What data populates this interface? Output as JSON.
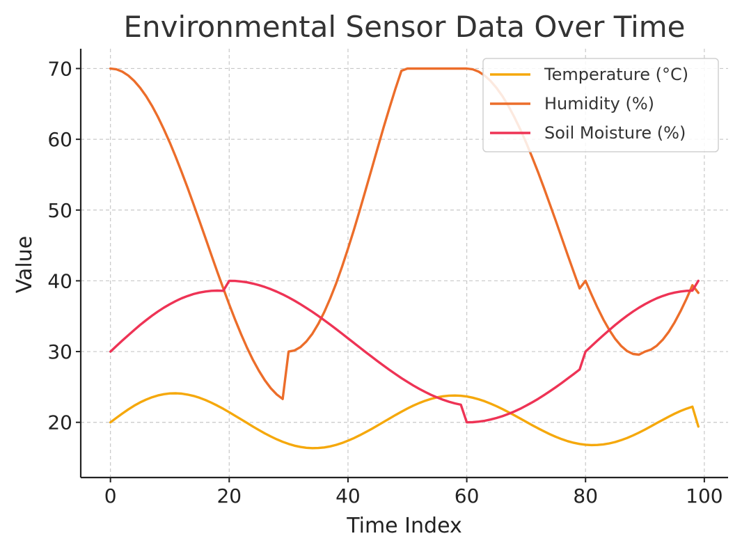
{
  "chart_data": {
    "type": "line",
    "title": "Environmental Sensor Data Over Time",
    "xlabel": "Time Index",
    "ylabel": "Value",
    "xlim": [
      -5,
      104
    ],
    "ylim": [
      12.2,
      72.8
    ],
    "xticks": [
      0,
      20,
      40,
      60,
      80,
      100
    ],
    "yticks": [
      20,
      30,
      40,
      50,
      60,
      70
    ],
    "grid": true,
    "legend_position": "top-right",
    "x": [
      0,
      1,
      2,
      3,
      4,
      5,
      6,
      7,
      8,
      9,
      10,
      11,
      12,
      13,
      14,
      15,
      16,
      17,
      18,
      19,
      20,
      21,
      22,
      23,
      24,
      25,
      26,
      27,
      28,
      29,
      30,
      31,
      32,
      33,
      34,
      35,
      36,
      37,
      38,
      39,
      40,
      41,
      42,
      43,
      44,
      45,
      46,
      47,
      48,
      49,
      50,
      51,
      52,
      53,
      54,
      55,
      56,
      57,
      58,
      59,
      60,
      61,
      62,
      63,
      64,
      65,
      66,
      67,
      68,
      69,
      70,
      71,
      72,
      73,
      74,
      75,
      76,
      77,
      78,
      79,
      80,
      81,
      82,
      83,
      84,
      85,
      86,
      87,
      88,
      89,
      90,
      91,
      92,
      93,
      94,
      95,
      96,
      97,
      98,
      99
    ],
    "series": [
      {
        "name": "Temperature (°C)",
        "color": "#F5A80C",
        "values": [
          20.0,
          20.63,
          21.24,
          21.82,
          22.35,
          22.81,
          23.21,
          23.54,
          23.8,
          23.98,
          24.08,
          24.1,
          24.05,
          23.92,
          23.73,
          23.47,
          23.15,
          22.78,
          22.36,
          21.91,
          21.43,
          20.93,
          20.42,
          19.91,
          19.4,
          18.91,
          18.44,
          18.0,
          17.6,
          17.25,
          16.95,
          16.7,
          16.52,
          16.4,
          16.35,
          16.37,
          16.45,
          16.6,
          16.81,
          17.08,
          17.4,
          17.77,
          18.18,
          18.62,
          19.08,
          19.56,
          20.05,
          20.54,
          21.03,
          21.5,
          21.95,
          22.36,
          22.73,
          23.05,
          23.32,
          23.53,
          23.68,
          23.77,
          23.79,
          23.75,
          23.65,
          23.48,
          23.26,
          22.98,
          22.65,
          22.28,
          21.88,
          21.45,
          21.0,
          20.54,
          20.07,
          19.61,
          19.16,
          18.73,
          18.32,
          17.95,
          17.62,
          17.34,
          17.11,
          16.94,
          16.83,
          16.78,
          16.8,
          16.88,
          17.02,
          17.22,
          17.48,
          17.79,
          18.15,
          18.55,
          18.98,
          19.43,
          19.89,
          20.35,
          20.8,
          21.22,
          21.6,
          21.93,
          22.2,
          19.4
        ]
      },
      {
        "name": "Humidity (%)",
        "color": "#EC6D2A",
        "values": [
          70.0,
          69.89,
          69.56,
          69.01,
          68.25,
          67.28,
          66.1,
          64.72,
          63.16,
          61.42,
          59.53,
          57.5,
          55.36,
          53.12,
          50.8,
          48.44,
          46.04,
          43.64,
          41.26,
          38.93,
          36.67,
          34.5,
          32.45,
          30.55,
          28.82,
          27.28,
          25.94,
          24.82,
          23.94,
          23.3,
          30.0,
          30.16,
          30.64,
          31.43,
          32.52,
          33.91,
          35.57,
          37.48,
          39.63,
          41.99,
          44.53,
          47.22,
          50.03,
          52.92,
          55.85,
          58.78,
          61.68,
          64.49,
          67.17,
          69.68,
          70.0,
          70.0,
          70.0,
          70.0,
          70.0,
          70.0,
          70.0,
          70.0,
          70.0,
          70.0,
          70.0,
          69.89,
          69.56,
          69.01,
          68.25,
          67.28,
          66.1,
          64.72,
          63.16,
          61.42,
          59.53,
          57.5,
          55.36,
          53.12,
          50.8,
          48.44,
          46.04,
          43.64,
          41.26,
          38.93,
          40.0,
          38.05,
          36.22,
          34.54,
          33.05,
          31.79,
          30.79,
          30.07,
          29.66,
          29.56,
          30.0,
          30.27,
          30.83,
          31.67,
          32.78,
          34.13,
          35.7,
          37.46,
          39.37,
          38.3
        ]
      },
      {
        "name": "Soil Moisture (%)",
        "color": "#EE3355",
        "values": [
          30.0,
          30.78,
          31.55,
          32.31,
          33.05,
          33.76,
          34.43,
          35.07,
          35.66,
          36.2,
          36.7,
          37.14,
          37.53,
          37.86,
          38.13,
          38.34,
          38.49,
          38.58,
          38.61,
          38.58,
          40.0,
          39.98,
          39.9,
          39.78,
          39.61,
          39.39,
          39.13,
          38.82,
          38.47,
          38.08,
          37.65,
          37.19,
          36.69,
          36.16,
          35.61,
          35.03,
          34.43,
          33.81,
          33.18,
          32.53,
          31.88,
          31.22,
          30.57,
          29.91,
          29.27,
          28.63,
          28.01,
          27.4,
          26.82,
          26.25,
          25.72,
          25.21,
          24.73,
          24.29,
          23.88,
          23.52,
          23.19,
          22.91,
          22.68,
          22.49,
          20.0,
          20.02,
          20.1,
          20.22,
          20.39,
          20.61,
          20.87,
          21.18,
          21.53,
          21.92,
          22.35,
          22.81,
          23.31,
          23.84,
          24.39,
          24.97,
          25.57,
          26.19,
          26.82,
          27.47,
          30.0,
          30.78,
          31.55,
          32.31,
          33.05,
          33.76,
          34.43,
          35.07,
          35.66,
          36.2,
          36.7,
          37.14,
          37.53,
          37.86,
          38.13,
          38.34,
          38.49,
          38.58,
          38.61,
          40.0
        ]
      }
    ]
  }
}
